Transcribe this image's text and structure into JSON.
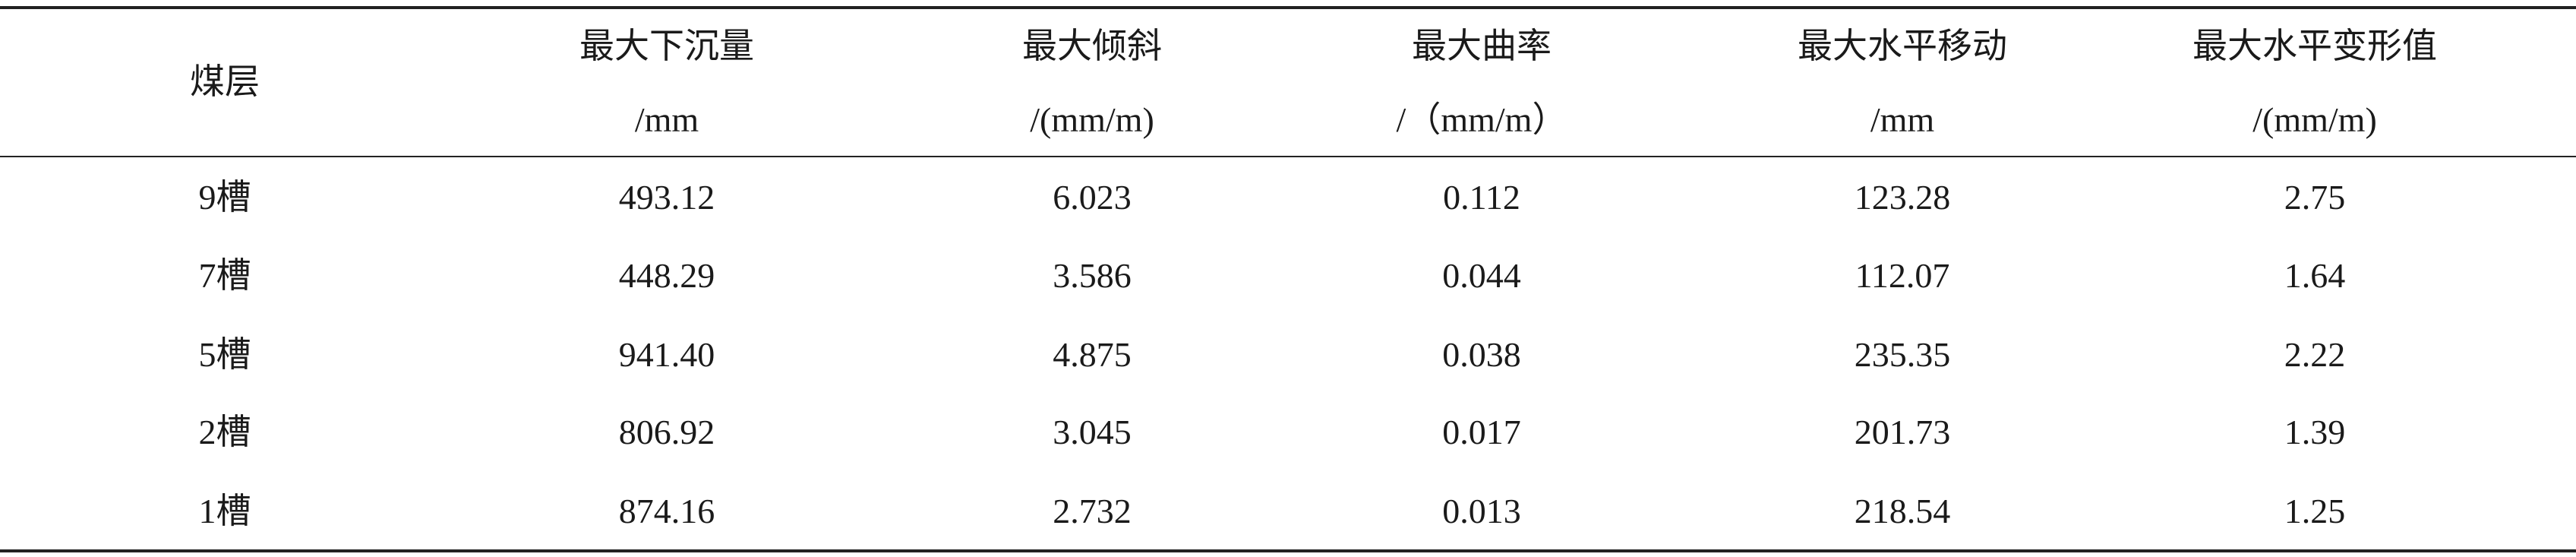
{
  "table": {
    "header": [
      {
        "title": "煤层"
      },
      {
        "title": "最大下沉量",
        "unit": "/mm"
      },
      {
        "title": "最大倾斜",
        "unit": "/(mm/m)"
      },
      {
        "title": "最大曲率",
        "unit": "/（mm/m）"
      },
      {
        "title": "最大水平移动",
        "unit": "/mm"
      },
      {
        "title": "最大水平变形值",
        "unit": "/(mm/m)"
      }
    ],
    "rows": [
      [
        "9槽",
        "493.12",
        "6.023",
        "0.112",
        "123.28",
        "2.75"
      ],
      [
        "7槽",
        "448.29",
        "3.586",
        "0.044",
        "112.07",
        "1.64"
      ],
      [
        "5槽",
        "941.40",
        "4.875",
        "0.038",
        "235.35",
        "2.22"
      ],
      [
        "2槽",
        "806.92",
        "3.045",
        "0.017",
        "201.73",
        "1.39"
      ],
      [
        "1槽",
        "874.16",
        "2.732",
        "0.013",
        "218.54",
        "1.25"
      ]
    ]
  }
}
